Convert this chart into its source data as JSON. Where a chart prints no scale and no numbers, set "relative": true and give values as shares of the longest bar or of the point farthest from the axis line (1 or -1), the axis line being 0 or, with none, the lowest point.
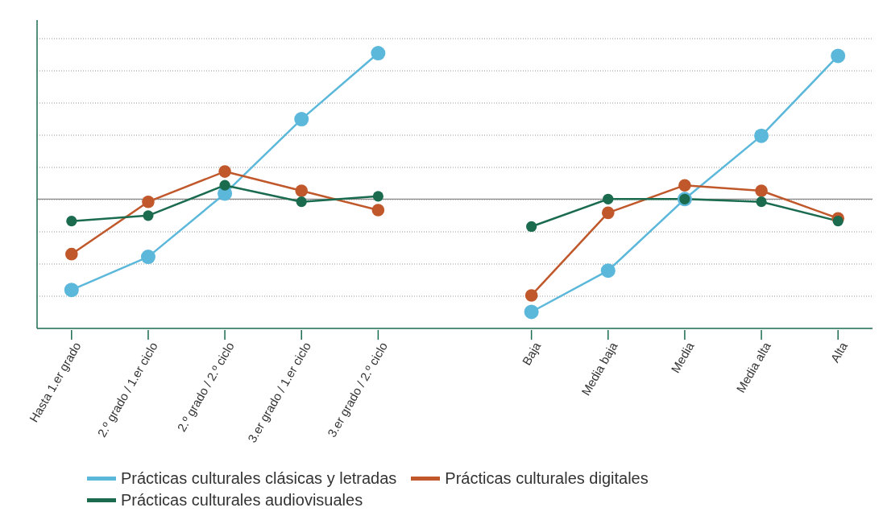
{
  "chart_data": {
    "type": "line",
    "relative": true,
    "categories": [
      "Hasta 1.er grado",
      "2.º grado / 1.er ciclo",
      "2.º grado / 2.º ciclo",
      "3.er grado / 1.er ciclo",
      "3.er grado / 2.º ciclo",
      null,
      "Baja",
      "Media baja",
      "Media",
      "Media alta",
      "Alta"
    ],
    "series": [
      {
        "name": "Prácticas culturales clásicas y letradas",
        "color": "#5bb8db",
        "values": [
          0.14,
          0.26,
          0.49,
          0.76,
          1.0,
          null,
          0.06,
          0.21,
          0.47,
          0.7,
          0.99
        ]
      },
      {
        "name": "Prácticas culturales digitales",
        "color": "#c0582b",
        "values": [
          0.27,
          0.46,
          0.57,
          0.5,
          0.43,
          null,
          0.12,
          0.42,
          0.52,
          0.5,
          0.4
        ]
      },
      {
        "name": "Prácticas culturales audiovisuales",
        "color": "#1b6b4f",
        "values": [
          0.39,
          0.41,
          0.52,
          0.46,
          0.48,
          null,
          0.37,
          0.47,
          0.47,
          0.46,
          0.39
        ]
      }
    ],
    "ref_lines": [
      {
        "axis": "y",
        "value": 0.47,
        "color": "#888888",
        "line_style": "solid"
      }
    ],
    "grid": "y",
    "legend": "bottom",
    "marker": "circle",
    "line_style": "solid"
  }
}
